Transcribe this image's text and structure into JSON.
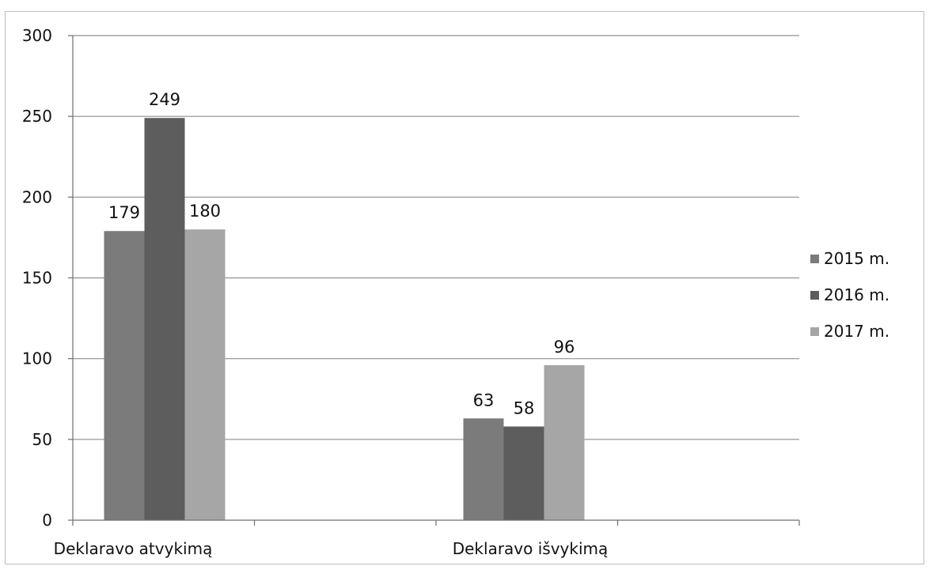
{
  "chart_data": {
    "type": "bar",
    "categories": [
      "Deklaravo atvykimą",
      "Deklaravo išvykimą"
    ],
    "series": [
      {
        "name": "2015 m.",
        "values": [
          179,
          63
        ],
        "color": "#7b7b7b"
      },
      {
        "name": "2016 m.",
        "values": [
          249,
          58
        ],
        "color": "#5d5d5d"
      },
      {
        "name": "2017 m.",
        "values": [
          180,
          96
        ],
        "color": "#a6a6a6"
      }
    ],
    "ylim": [
      0,
      300
    ],
    "yticks": [
      0,
      50,
      100,
      150,
      200,
      250,
      300
    ],
    "grid": true,
    "legend": "right",
    "data_labels": true
  }
}
